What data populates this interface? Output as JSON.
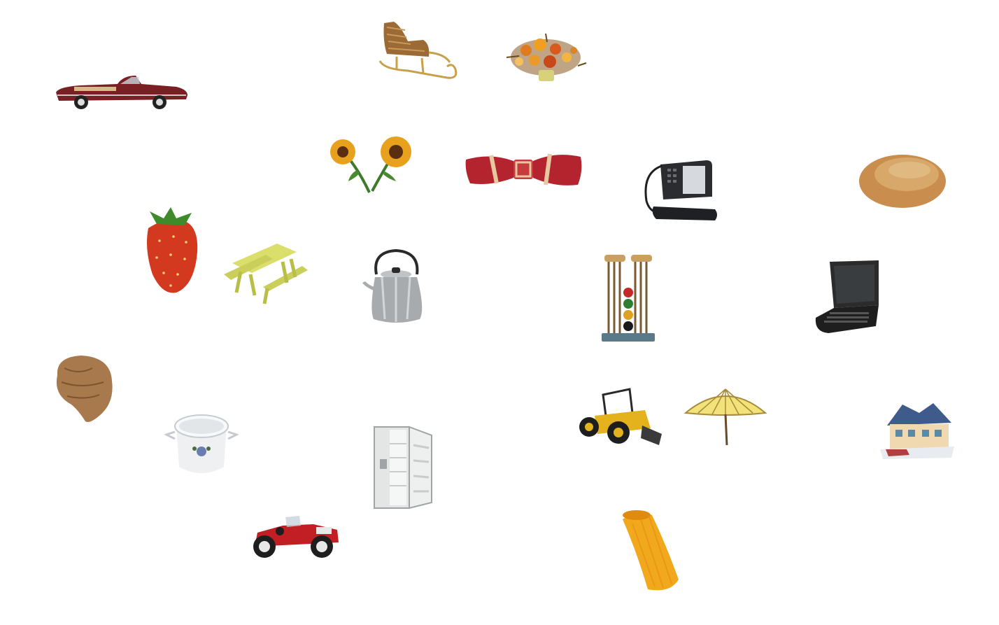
{
  "board": {
    "background": "#ffffff",
    "items": [
      {
        "id": "convertible-car",
        "icon": "convertible-car-icon",
        "color": "#7a1f24"
      },
      {
        "id": "wicker-sleigh",
        "icon": "sleigh-icon",
        "color": "#b0793a"
      },
      {
        "id": "flower-arrangement",
        "icon": "bouquet-icon",
        "color": "#d9822b"
      },
      {
        "id": "sunflowers",
        "icon": "sunflower-icon",
        "color": "#e39a1a"
      },
      {
        "id": "bow-tie",
        "icon": "bow-tie-icon",
        "color": "#b3242e"
      },
      {
        "id": "desk-telephone",
        "icon": "telephone-icon",
        "color": "#2a2c30"
      },
      {
        "id": "bread-roll",
        "icon": "bread-icon",
        "color": "#c98d4e"
      },
      {
        "id": "strawberry",
        "icon": "strawberry-icon",
        "color": "#d2391f"
      },
      {
        "id": "picnic-table",
        "icon": "picnic-table-icon",
        "color": "#d9df6a"
      },
      {
        "id": "kettle",
        "icon": "kettle-icon",
        "color": "#a8abad"
      },
      {
        "id": "croquet-set",
        "icon": "croquet-set-icon",
        "color": "#7a5a36"
      },
      {
        "id": "laptop",
        "icon": "laptop-icon",
        "color": "#2b2b2b"
      },
      {
        "id": "hair-wig",
        "icon": "wig-icon",
        "color": "#a9794e"
      },
      {
        "id": "cooking-pot",
        "icon": "cooking-pot-icon",
        "color": "#eef0f2"
      },
      {
        "id": "refrigerator",
        "icon": "refrigerator-icon",
        "color": "#e4e6e6"
      },
      {
        "id": "tractor",
        "icon": "tractor-icon",
        "color": "#e3b21c"
      },
      {
        "id": "parasol",
        "icon": "parasol-icon",
        "color": "#f1e27a"
      },
      {
        "id": "miniature-house",
        "icon": "house-icon",
        "color": "#3f5b8c"
      },
      {
        "id": "vintage-car",
        "icon": "vintage-car-icon",
        "color": "#c21f24"
      },
      {
        "id": "macaroni",
        "icon": "macaroni-icon",
        "color": "#f2a81c"
      }
    ]
  }
}
